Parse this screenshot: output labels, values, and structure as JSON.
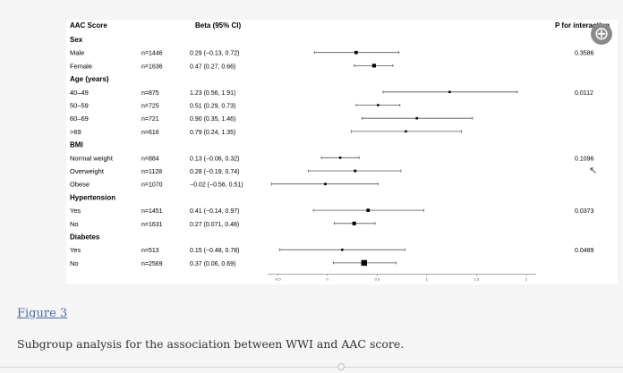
{
  "figure": {
    "header": {
      "col_score": "AAC Score",
      "col_beta": "Beta (95% CI)",
      "col_p": "P for interaction"
    },
    "rows": [
      {
        "type": "group",
        "label": "Sex"
      },
      {
        "type": "data",
        "label": "Male",
        "n": "n=1446",
        "ci_text": "0.29 (−0.13, 0.72)",
        "est": 0.29,
        "lo": -0.13,
        "hi": 0.72,
        "p": "0.3586"
      },
      {
        "type": "data",
        "label": "Female",
        "n": "n=1636",
        "ci_text": "0.47 (0.27, 0.66)",
        "est": 0.47,
        "lo": 0.27,
        "hi": 0.66,
        "p": ""
      },
      {
        "type": "group",
        "label": "Age (years)"
      },
      {
        "type": "data",
        "label": "40–49",
        "n": "n=875",
        "ci_text": "1.23 (0.56, 1.91)",
        "est": 1.23,
        "lo": 0.56,
        "hi": 1.91,
        "p": "0.0112"
      },
      {
        "type": "data",
        "label": "50–59",
        "n": "n=725",
        "ci_text": "0.51 (0.29, 0.73)",
        "est": 0.51,
        "lo": 0.29,
        "hi": 0.73,
        "p": ""
      },
      {
        "type": "data",
        "label": "60–69",
        "n": "n=721",
        "ci_text": "0.90 (0.35, 1.46)",
        "est": 0.9,
        "lo": 0.35,
        "hi": 1.46,
        "p": ""
      },
      {
        "type": "data",
        "label": ">69",
        "n": "n=616",
        "ci_text": "0.79 (0.24, 1.35)",
        "est": 0.79,
        "lo": 0.24,
        "hi": 1.35,
        "p": ""
      },
      {
        "type": "group",
        "label": "BMI"
      },
      {
        "type": "data",
        "label": "Normal weight",
        "n": "n=884",
        "ci_text": "0.13 (−0.06, 0.32)",
        "est": 0.13,
        "lo": -0.06,
        "hi": 0.32,
        "p": "0.1096"
      },
      {
        "type": "data",
        "label": "Overweight",
        "n": "n=1128",
        "ci_text": "0.28 (−0.19, 0.74)",
        "est": 0.28,
        "lo": -0.19,
        "hi": 0.74,
        "p": ""
      },
      {
        "type": "data",
        "label": "Obese",
        "n": "n=1070",
        "ci_text": "−0.02 (−0.56, 0.51)",
        "est": -0.02,
        "lo": -0.56,
        "hi": 0.51,
        "p": ""
      },
      {
        "type": "group",
        "label": "Hypertension"
      },
      {
        "type": "data",
        "label": "Yes",
        "n": "n=1451",
        "ci_text": "0.41 (−0.14, 0.97)",
        "est": 0.41,
        "lo": -0.14,
        "hi": 0.97,
        "p": "0.0373"
      },
      {
        "type": "data",
        "label": "No",
        "n": "n=1631",
        "ci_text": "0.27 (0.071, 0.48)",
        "est": 0.27,
        "lo": 0.071,
        "hi": 0.48,
        "p": ""
      },
      {
        "type": "group",
        "label": "Diabetes"
      },
      {
        "type": "data",
        "label": "Yes",
        "n": "n=513",
        "ci_text": "0.15 (−0.48, 0.78)",
        "est": 0.15,
        "lo": -0.48,
        "hi": 0.78,
        "p": "0.0489"
      },
      {
        "type": "data",
        "label": "No",
        "n": "n=2569",
        "ci_text": "0.37 (0.06, 0.69)",
        "est": 0.37,
        "lo": 0.06,
        "hi": 0.69,
        "p": ""
      }
    ],
    "x_ticks": [
      "-0.5",
      "0",
      "0.5",
      "1",
      "1.5",
      "2"
    ],
    "x_range": [
      -0.6,
      2.1
    ],
    "zoom_icon": "zoom-in-icon",
    "zoom_symbol": "⊕",
    "cursor_icon": "cursor-icon",
    "cursor_symbol": "↖"
  },
  "figure_label": "Figure 3",
  "caption": "Subgroup analysis for the association between WWI and AAC score.",
  "colors": {
    "link": "#4a69a8",
    "marker": "#000000",
    "ci_line": "#555555"
  }
}
